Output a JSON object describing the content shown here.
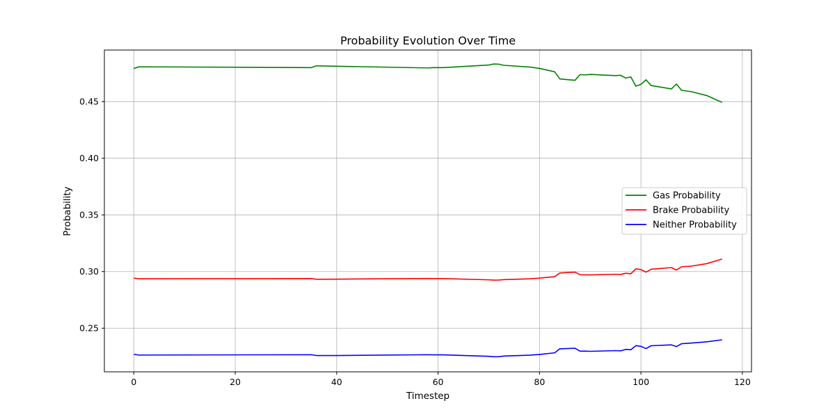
{
  "chart_data": {
    "type": "line",
    "title": "Probability Evolution Over Time",
    "xlabel": "Timestep",
    "ylabel": "Probability",
    "xlim": [
      -5.8,
      121.8
    ],
    "ylim": [
      0.2115,
      0.4955
    ],
    "xticks": [
      0,
      20,
      40,
      60,
      80,
      100,
      120
    ],
    "yticks": [
      0.25,
      0.3,
      0.35,
      0.4,
      0.45
    ],
    "ytick_labels": [
      "0.25",
      "0.30",
      "0.35",
      "0.40",
      "0.45"
    ],
    "grid": true,
    "legend_position": "center-right",
    "x": [
      0,
      1,
      35,
      36,
      40,
      58,
      59,
      61,
      70,
      71,
      72,
      73,
      78,
      80,
      83,
      84,
      87,
      88,
      89,
      90,
      95,
      96,
      97,
      98,
      99,
      100,
      101,
      102,
      106,
      107,
      108,
      110,
      113,
      116
    ],
    "series": [
      {
        "name": "Gas Probability",
        "color": "#008000",
        "values": [
          0.4792,
          0.4807,
          0.48,
          0.4816,
          0.4812,
          0.4797,
          0.48,
          0.48,
          0.4823,
          0.4832,
          0.483,
          0.482,
          0.4805,
          0.4793,
          0.4763,
          0.47,
          0.4688,
          0.4738,
          0.4735,
          0.474,
          0.4729,
          0.4732,
          0.4708,
          0.4718,
          0.4636,
          0.4652,
          0.4692,
          0.4642,
          0.4612,
          0.4655,
          0.46,
          0.4587,
          0.4553,
          0.4493
        ]
      },
      {
        "name": "Brake Probability",
        "color": "#ff0000",
        "values": [
          0.2942,
          0.2936,
          0.2938,
          0.2932,
          0.2933,
          0.2939,
          0.2938,
          0.2938,
          0.2927,
          0.2924,
          0.2925,
          0.2929,
          0.2936,
          0.2942,
          0.2955,
          0.2987,
          0.2995,
          0.2972,
          0.2971,
          0.297,
          0.2976,
          0.2974,
          0.2985,
          0.298,
          0.3024,
          0.3018,
          0.2995,
          0.302,
          0.3035,
          0.3013,
          0.3042,
          0.3048,
          0.307,
          0.311
        ]
      },
      {
        "name": "Neither Probability",
        "color": "#0000ff",
        "values": [
          0.227,
          0.2263,
          0.2266,
          0.2259,
          0.2259,
          0.2266,
          0.2265,
          0.2265,
          0.2252,
          0.2248,
          0.2249,
          0.2254,
          0.2262,
          0.2268,
          0.2283,
          0.2318,
          0.2323,
          0.2297,
          0.2298,
          0.2296,
          0.2302,
          0.23,
          0.2313,
          0.231,
          0.2346,
          0.234,
          0.232,
          0.2345,
          0.2353,
          0.2338,
          0.2363,
          0.2369,
          0.238,
          0.2398
        ]
      }
    ]
  }
}
